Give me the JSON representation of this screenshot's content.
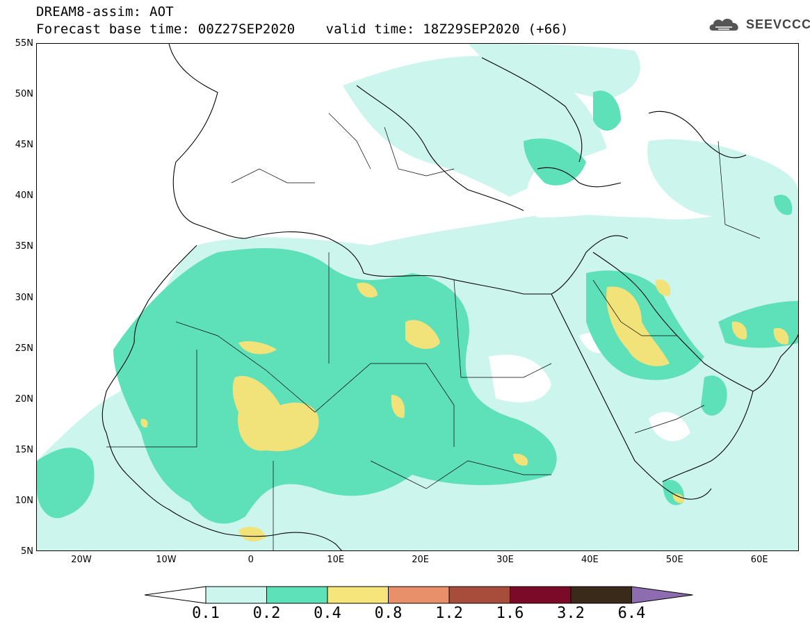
{
  "header": {
    "title_line1": "DREAM8-assim: AOT",
    "base_time": "Forecast base time: 00Z27SEP2020",
    "valid_time": "valid time: 18Z29SEP2020 (+66)",
    "logo_text": "SEEVCCC"
  },
  "axes": {
    "lat_ticks": [
      "55N",
      "50N",
      "45N",
      "40N",
      "35N",
      "30N",
      "25N",
      "20N",
      "15N",
      "10N",
      "5N"
    ],
    "lon_ticks": [
      "20W",
      "10W",
      "0",
      "10E",
      "20E",
      "30E",
      "40E",
      "50E",
      "60E"
    ],
    "lon_range": [
      -25,
      65
    ],
    "lat_range": [
      5,
      55
    ]
  },
  "legend": {
    "levels": [
      "0.1",
      "0.2",
      "0.4",
      "0.8",
      "1.2",
      "1.6",
      "3.2",
      "6.4"
    ],
    "colors": [
      "#ffffff",
      "#ccf5ee",
      "#5ee0b8",
      "#f5e57a",
      "#e8906a",
      "#a84c3c",
      "#7a0a28",
      "#3a2a1a",
      "#8e6cb0"
    ]
  },
  "field_colors": {
    "low": "#ccf5ee",
    "mid": "#5ee0b8",
    "high": "#f2e27a",
    "coast": "#000000"
  }
}
